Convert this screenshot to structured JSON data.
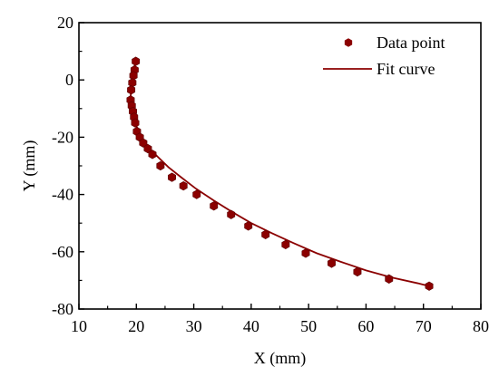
{
  "chart_data": {
    "type": "scatter",
    "xlabel": "X (mm)",
    "ylabel": "Y (mm)",
    "xlim": [
      10,
      80
    ],
    "ylim": [
      -80,
      20
    ],
    "x_ticks": [
      "10",
      "20",
      "30",
      "40",
      "50",
      "60",
      "70",
      "80"
    ],
    "y_ticks": [
      "-80",
      "-60",
      "-40",
      "-20",
      "0",
      "20"
    ],
    "legend_position": "top-right",
    "colors": {
      "marker": "#8b0000",
      "line": "#8b0000"
    },
    "series": [
      {
        "name": "Data point",
        "marker": "hexagon",
        "x": [
          19.9,
          19.7,
          19.5,
          19.3,
          19.1,
          19.0,
          19.2,
          19.4,
          19.6,
          19.8,
          20.1,
          20.6,
          21.2,
          22.0,
          22.8,
          24.2,
          26.2,
          28.2,
          30.5,
          33.5,
          36.5,
          39.5,
          42.5,
          46.0,
          49.5,
          54.0,
          58.5,
          64.0,
          71.0
        ],
        "y": [
          6.5,
          3.5,
          1.5,
          -1.0,
          -3.5,
          -7.0,
          -9.0,
          -11.0,
          -13.0,
          -15.0,
          -18.0,
          -20.0,
          -22.0,
          -24.0,
          -26.0,
          -30.0,
          -34.0,
          -37.0,
          -40.0,
          -44.0,
          -47.0,
          -51.0,
          -54.0,
          -57.5,
          -60.5,
          -64.0,
          -67.0,
          -69.5,
          -72.0
        ]
      },
      {
        "name": "Fit curve",
        "type": "line",
        "x": [
          19.8,
          19.5,
          19.3,
          19.1,
          19.0,
          19.1,
          19.4,
          19.8,
          20.4,
          21.2,
          22.3,
          23.8,
          25.6,
          27.8,
          30.4,
          33.4,
          36.6,
          40.0,
          43.6,
          47.4,
          51.4,
          55.6,
          60.0,
          64.5,
          69.0,
          71.0
        ],
        "y": [
          6.0,
          3.0,
          0.0,
          -3.0,
          -6.0,
          -9.0,
          -12.0,
          -15.0,
          -18.0,
          -21.0,
          -24.0,
          -27.0,
          -30.5,
          -34.0,
          -38.0,
          -42.0,
          -46.0,
          -50.0,
          -53.5,
          -57.0,
          -60.5,
          -63.5,
          -66.5,
          -69.0,
          -71.0,
          -72.0
        ]
      }
    ]
  }
}
